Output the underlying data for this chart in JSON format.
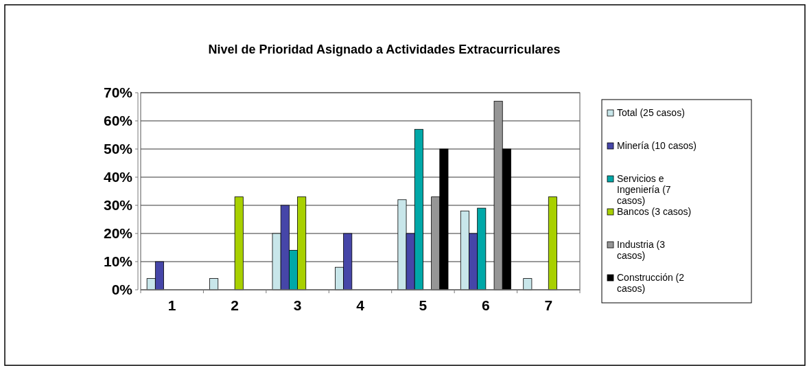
{
  "chart_data": {
    "type": "bar",
    "title": "Nivel de Prioridad Asignado a Actividades Extracurriculares",
    "categories": [
      "1",
      "2",
      "3",
      "4",
      "5",
      "6",
      "7"
    ],
    "series": [
      {
        "name": "Total (25 casos)",
        "color": "#c8e6ea",
        "values": [
          4,
          4,
          20,
          8,
          32,
          28,
          4
        ]
      },
      {
        "name": "Minería (10 casos)",
        "color": "#4646a8",
        "values": [
          10,
          0,
          30,
          20,
          20,
          20,
          0
        ]
      },
      {
        "name": "Servicios e Ingeniería (7 casos)",
        "color": "#00a8a8",
        "values": [
          0,
          0,
          14,
          0,
          57,
          29,
          0
        ]
      },
      {
        "name": "Bancos (3 casos)",
        "color": "#a8d000",
        "values": [
          0,
          33,
          33,
          0,
          0,
          0,
          33
        ]
      },
      {
        "name": "Industria (3 casos)",
        "color": "#969696",
        "values": [
          0,
          0,
          0,
          0,
          33,
          67,
          0
        ]
      },
      {
        "name": "Construcción (2 casos)",
        "color": "#000000",
        "values": [
          0,
          0,
          0,
          0,
          50,
          50,
          0
        ]
      }
    ],
    "ylim": [
      0,
      70
    ],
    "yticks": [
      {
        "value": 0,
        "label": "0%"
      },
      {
        "value": 10,
        "label": "10%"
      },
      {
        "value": 20,
        "label": "20%"
      },
      {
        "value": 30,
        "label": "30%"
      },
      {
        "value": 40,
        "label": "40%"
      },
      {
        "value": 50,
        "label": "50%"
      },
      {
        "value": 60,
        "label": "60%"
      },
      {
        "value": 70,
        "label": "70%"
      }
    ],
    "grid": "y",
    "legend": "right"
  }
}
